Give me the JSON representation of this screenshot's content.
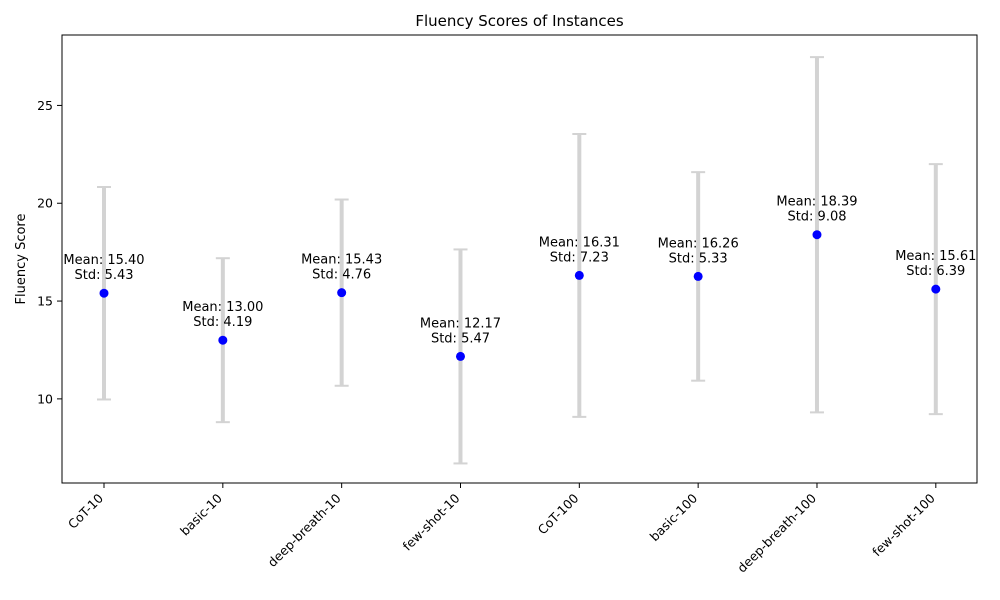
{
  "chart_data": {
    "type": "scatter",
    "title": "Fluency Scores of Instances",
    "xlabel": "",
    "ylabel": "Fluency Score",
    "ylim": [
      5.7,
      28.6
    ],
    "yticks": [
      10,
      15,
      20,
      25
    ],
    "grid": false,
    "legend": "none",
    "categories": [
      "CoT-10",
      "basic-10",
      "deep-breath-10",
      "few-shot-10",
      "CoT-100",
      "basic-100",
      "deep-breath-100",
      "few-shot-100"
    ],
    "means": [
      15.4,
      13.0,
      15.43,
      12.17,
      16.31,
      16.26,
      18.39,
      15.61
    ],
    "stds": [
      5.43,
      4.19,
      4.76,
      5.47,
      7.23,
      5.33,
      9.08,
      6.39
    ],
    "annotation_labels": [
      [
        "Mean: 15.40",
        "Std: 5.43"
      ],
      [
        "Mean: 13.00",
        "Std: 4.19"
      ],
      [
        "Mean: 15.43",
        "Std: 4.76"
      ],
      [
        "Mean: 12.17",
        "Std: 5.47"
      ],
      [
        "Mean: 16.31",
        "Std: 7.23"
      ],
      [
        "Mean: 16.26",
        "Std: 5.33"
      ],
      [
        "Mean: 18.39",
        "Std: 9.08"
      ],
      [
        "Mean: 15.61",
        "Std: 6.39"
      ]
    ],
    "colors": {
      "point": "#0000ff",
      "errorbar": "#d3d3d3",
      "axis": "#000000"
    }
  }
}
